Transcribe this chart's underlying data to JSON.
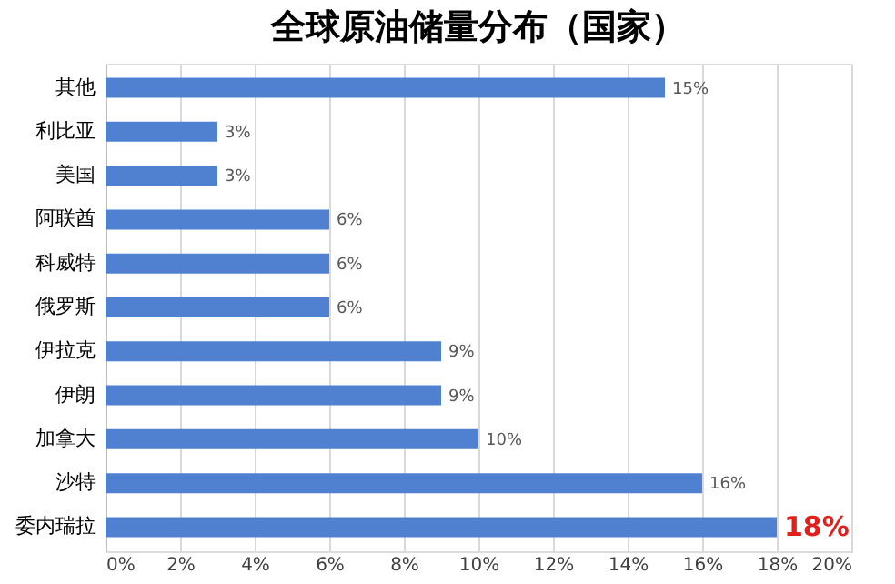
{
  "chart_data": {
    "type": "bar",
    "orientation": "horizontal",
    "title": "全球原油储量分布（国家）",
    "categories": [
      "其他",
      "利比亚",
      "美国",
      "阿联酋",
      "科威特",
      "俄罗斯",
      "伊拉克",
      "伊朗",
      "加拿大",
      "沙特",
      "委内瑞拉"
    ],
    "values": [
      15,
      3,
      3,
      6,
      6,
      6,
      9,
      9,
      10,
      16,
      18
    ],
    "value_labels": [
      "15%",
      "3%",
      "3%",
      "6%",
      "6%",
      "6%",
      "9%",
      "9%",
      "10%",
      "16%",
      null
    ],
    "annotations": [
      {
        "text": "18%",
        "x": 18,
        "y": "委内瑞拉"
      }
    ],
    "color": "#4f81d0",
    "xlim": [
      0,
      20
    ],
    "xticks": [
      {
        "value": 0,
        "label": "0%"
      },
      {
        "value": 2,
        "label": "2%"
      },
      {
        "value": 4,
        "label": "4%"
      },
      {
        "value": 6,
        "label": "6%"
      },
      {
        "value": 8,
        "label": "8%"
      },
      {
        "value": 10,
        "label": "10%"
      },
      {
        "value": 12,
        "label": "12%"
      },
      {
        "value": 14,
        "label": "14%"
      },
      {
        "value": 16,
        "label": "16%"
      },
      {
        "value": 18,
        "label": "18%"
      },
      {
        "value": 20,
        "label": "20%"
      }
    ],
    "grid": "x"
  }
}
